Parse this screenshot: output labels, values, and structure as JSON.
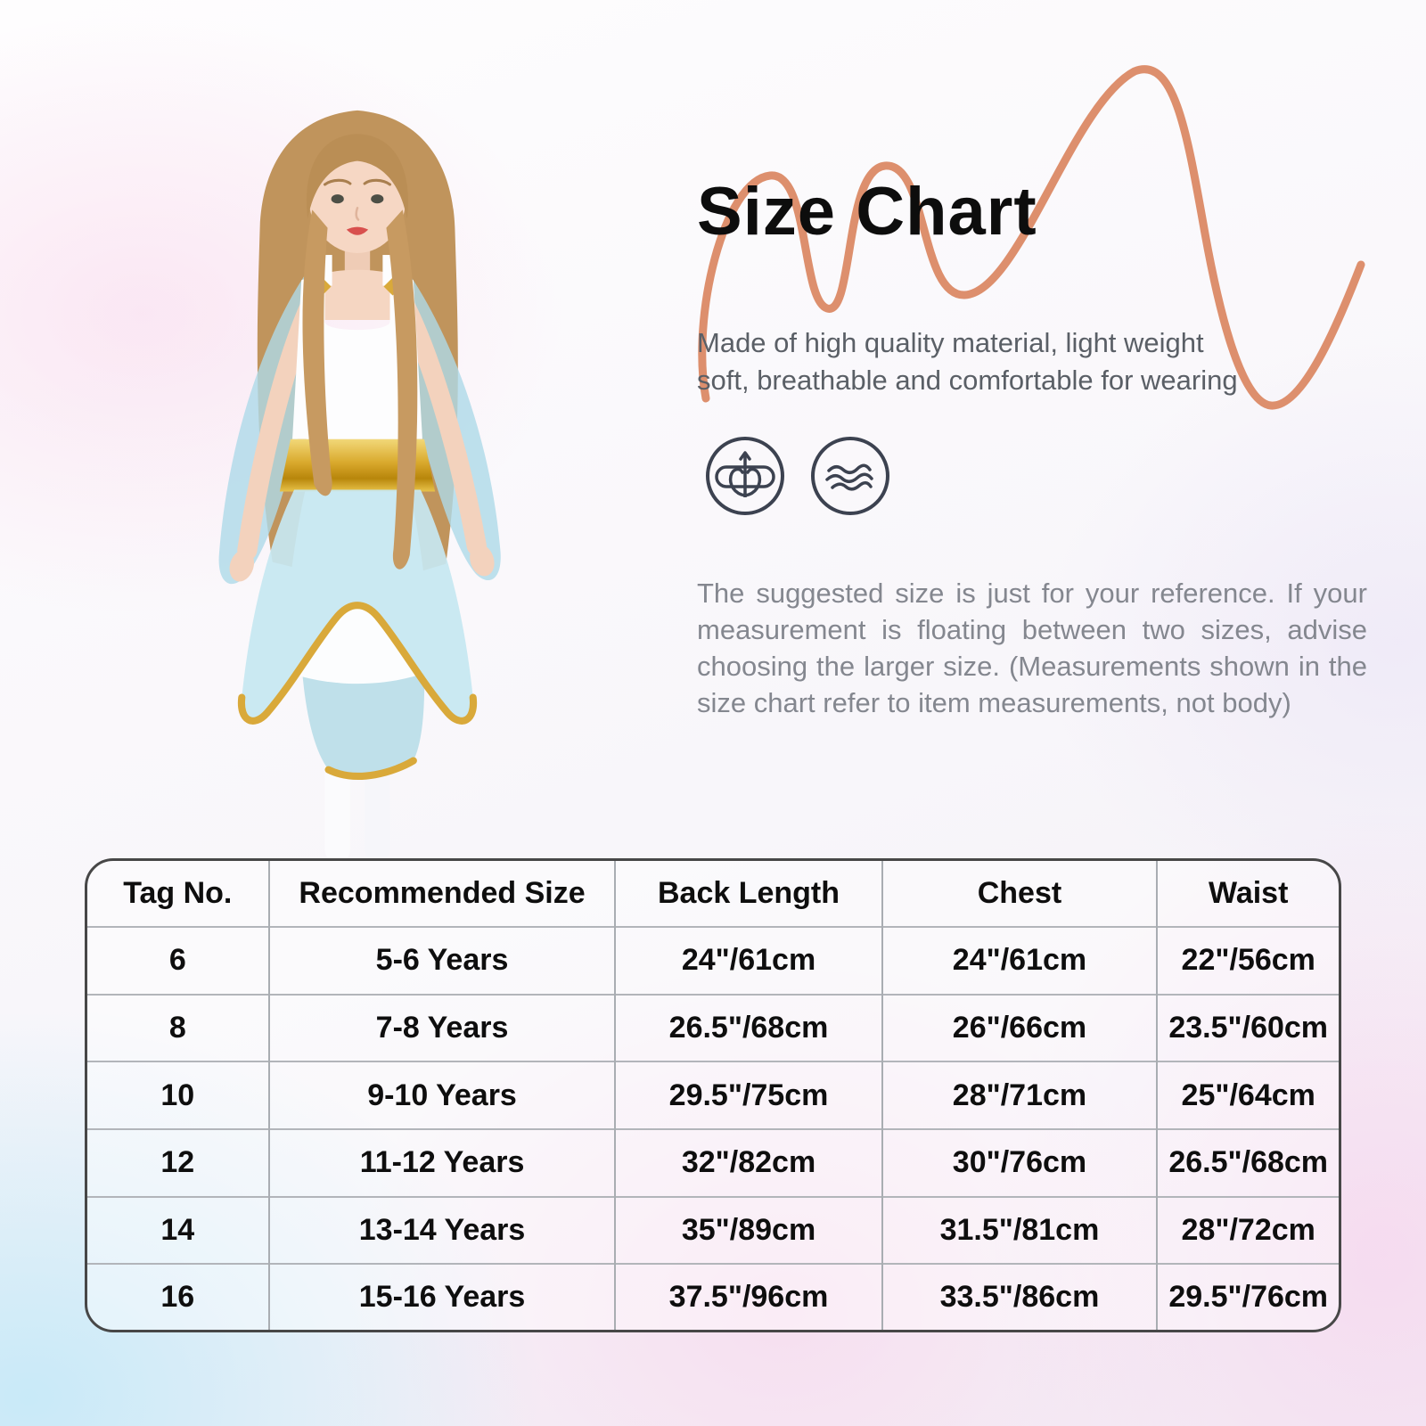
{
  "page": {
    "title": "Size Chart",
    "description_line1": "Made of high quality material, light weight",
    "description_line2": "soft, breathable and comfortable for wearing",
    "note": "The suggested size is just for your reference. If your measurement is floating between two sizes, advise choosing the larger size. (Measurements shown in the size chart refer to item measurements, not body)"
  },
  "icons": [
    {
      "name": "stretch-icon",
      "meaning": "high elasticity fabric"
    },
    {
      "name": "soft-icon",
      "meaning": "soft breathable fabric"
    }
  ],
  "colors": {
    "accent_squiggle": "#dd8f6d",
    "table_border": "#474747",
    "grid_line": "#a9adb2",
    "title_text": "#0d0d0d",
    "subtitle_text": "#5a5f66",
    "note_text": "#84878f",
    "dress_blue": "#c2e4ef",
    "dress_gold": "#d9a93a"
  },
  "size_table": {
    "headers": [
      "Tag No.",
      "Recommended Size",
      "Back Length",
      "Chest",
      "Waist"
    ],
    "rows": [
      [
        "6",
        "5-6 Years",
        "24\"/61cm",
        "24\"/61cm",
        "22\"/56cm"
      ],
      [
        "8",
        "7-8 Years",
        "26.5\"/68cm",
        "26\"/66cm",
        "23.5\"/60cm"
      ],
      [
        "10",
        "9-10 Years",
        "29.5\"/75cm",
        "28\"/71cm",
        "25\"/64cm"
      ],
      [
        "12",
        "11-12 Years",
        "32\"/82cm",
        "30\"/76cm",
        "26.5\"/68cm"
      ],
      [
        "14",
        "13-14 Years",
        "35\"/89cm",
        "31.5\"/81cm",
        "28\"/72cm"
      ],
      [
        "16",
        "15-16 Years",
        "37.5\"/96cm",
        "33.5\"/86cm",
        "29.5\"/76cm"
      ]
    ]
  }
}
